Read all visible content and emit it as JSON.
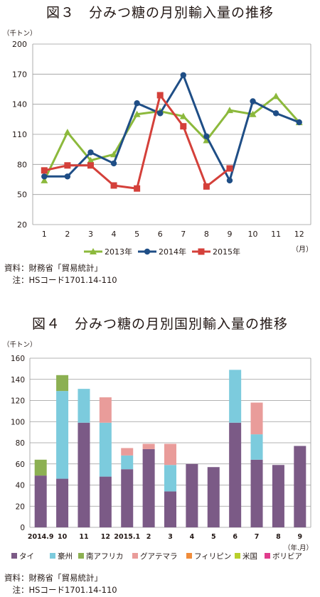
{
  "chart1": {
    "title": "図３　分みつ糖の月別輸入量の推移",
    "unit_label": "（千トン）",
    "x_unit": "（月）",
    "source": [
      "資料：財務省「貿易統計」",
      "　注：HSコード1701.14-110"
    ],
    "chart_data": {
      "type": "line",
      "categories": [
        "1",
        "2",
        "3",
        "4",
        "5",
        "6",
        "7",
        "8",
        "9",
        "10",
        "11",
        "12"
      ],
      "ylim": [
        20,
        200
      ],
      "yticks": [
        20,
        50,
        80,
        110,
        140,
        170,
        200
      ],
      "grid": true,
      "legend_position": "bottom",
      "series": [
        {
          "name": "2013年",
          "color": "#8cb93c",
          "marker": "triangle",
          "values": [
            64,
            112,
            84,
            90,
            130,
            133,
            128,
            104,
            134,
            130,
            148,
            122
          ]
        },
        {
          "name": "2014年",
          "color": "#1f4e86",
          "marker": "circle",
          "values": [
            68,
            68,
            92,
            81,
            141,
            131,
            169,
            108,
            64,
            143,
            131,
            122
          ]
        },
        {
          "name": "2015年",
          "color": "#d4403a",
          "marker": "square",
          "values": [
            74,
            79,
            79,
            59,
            56,
            149,
            118,
            58,
            76,
            null,
            null,
            null
          ]
        }
      ]
    }
  },
  "chart2": {
    "title": "図４　分みつ糖の月別国別輸入量の推移",
    "unit_label": "（千トン）",
    "x_unit": "（年.月）",
    "source": [
      "資料：財務省「貿易統計」",
      "　注：HSコード1701.14-110"
    ],
    "chart_data": {
      "type": "bar",
      "stacked": true,
      "categories": [
        "2014.9",
        "10",
        "11",
        "12",
        "2015.1",
        "2",
        "3",
        "4",
        "5",
        "6",
        "7",
        "8",
        "9"
      ],
      "ylim": [
        0,
        160
      ],
      "yticks": [
        0,
        20,
        40,
        60,
        80,
        100,
        120,
        140,
        160
      ],
      "grid": true,
      "legend_position": "bottom",
      "series": [
        {
          "name": "タイ",
          "color": "#7b5a86",
          "values": [
            49,
            46,
            99,
            48,
            55,
            74,
            34,
            60,
            57,
            99,
            64,
            59,
            77
          ]
        },
        {
          "name": "豪州",
          "color": "#7ccbdd",
          "values": [
            0,
            83,
            32,
            51,
            13,
            0,
            25,
            0,
            0,
            50,
            24,
            0,
            0
          ]
        },
        {
          "name": "南アフリカ",
          "color": "#8cb052",
          "values": [
            15,
            15,
            0,
            0,
            0,
            0,
            0,
            0,
            0,
            0,
            0,
            0,
            0
          ]
        },
        {
          "name": "グアテマラ",
          "color": "#e99c9a",
          "values": [
            0,
            0,
            0,
            24,
            7,
            5,
            20,
            0,
            0,
            0,
            30,
            0,
            0
          ]
        },
        {
          "name": "フィリピン",
          "color": "#f08c3a",
          "values": [
            0,
            0,
            0,
            0,
            0,
            0,
            0,
            0,
            0,
            0,
            0,
            0,
            0
          ]
        },
        {
          "name": "米国",
          "color": "#b8cf2a",
          "values": [
            0,
            0,
            0,
            0,
            0,
            0,
            0,
            0,
            0,
            0,
            0,
            0,
            0
          ]
        },
        {
          "name": "ボリビア",
          "color": "#e03c8c",
          "values": [
            0,
            0,
            0,
            0,
            0,
            0,
            0,
            0,
            0,
            0,
            0,
            0,
            0
          ]
        }
      ]
    }
  }
}
